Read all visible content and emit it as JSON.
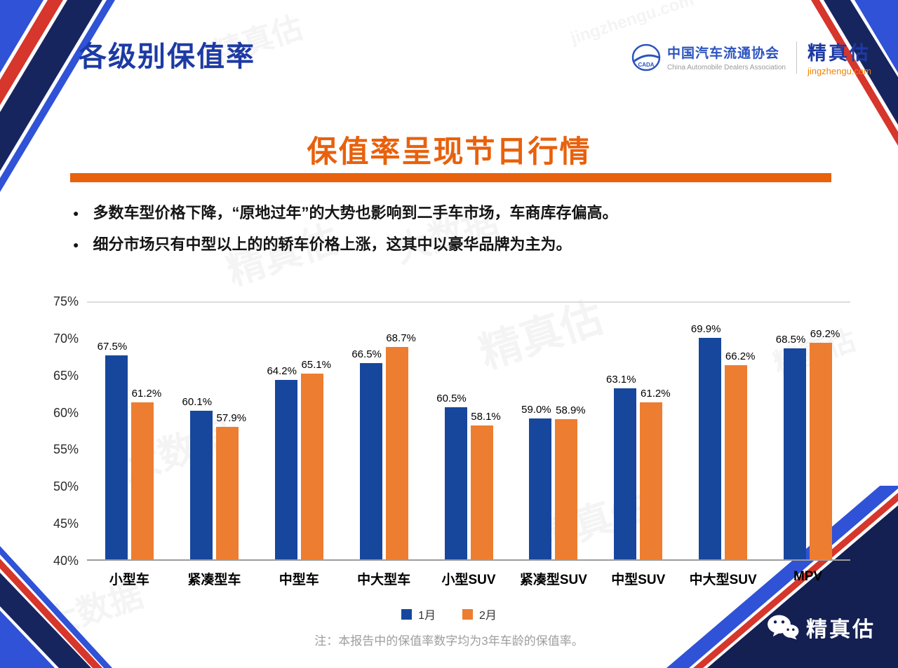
{
  "slide": {
    "title": "各级别保值率",
    "subtitle": "保值率呈现节日行情",
    "bullets": [
      "多数车型价格下降，“原地过年”的大势也影响到二手车市场，车商库存偏高。",
      "细分市场只有中型以上的的轿车价格上涨，这其中以豪华品牌为主为。"
    ],
    "note": "注：本报告中的保值率数字均为3年车龄的保值率。"
  },
  "header": {
    "assoc_name": "中国汽车流通协会",
    "assoc_name_en": "China Automobile Dealers Association",
    "assoc_logo_text": "CADA",
    "brand_name": "精真估",
    "brand_site": "jingzhengu.com"
  },
  "footer": {
    "wechat_brand": "精真估"
  },
  "watermarks": {
    "brand": "精真估",
    "site": "jingzhengu.com",
    "tagline": "大数据"
  },
  "chart_data": {
    "type": "bar",
    "title": "保值率呈现节日行情",
    "categories": [
      "小型车",
      "紧凑型车",
      "中型车",
      "中大型车",
      "小型SUV",
      "紧凑型SUV",
      "中型SUV",
      "中大型SUV",
      "MPV"
    ],
    "series": [
      {
        "name": "1月",
        "color": "#17479D",
        "values": [
          67.5,
          60.1,
          64.2,
          66.5,
          60.5,
          59.0,
          63.1,
          69.9,
          68.5
        ]
      },
      {
        "name": "2月",
        "color": "#ED7D31",
        "values": [
          61.2,
          57.9,
          65.1,
          68.7,
          58.1,
          58.9,
          61.2,
          66.2,
          69.2
        ]
      }
    ],
    "ylim": [
      40,
      75
    ],
    "yticks": [
      40,
      45,
      50,
      55,
      60,
      65,
      70,
      75
    ],
    "value_suffix": "%",
    "grid": "top-line-only",
    "legend_position": "bottom",
    "xlabel": "",
    "ylabel": ""
  },
  "colors": {
    "title_blue": "#1D3AA4",
    "accent_orange": "#E8610C",
    "bar_blue": "#17479D",
    "bar_orange": "#ED7D31",
    "corner_navy": "#17255F",
    "corner_blue": "#2F52D6",
    "corner_red": "#D6362B"
  }
}
